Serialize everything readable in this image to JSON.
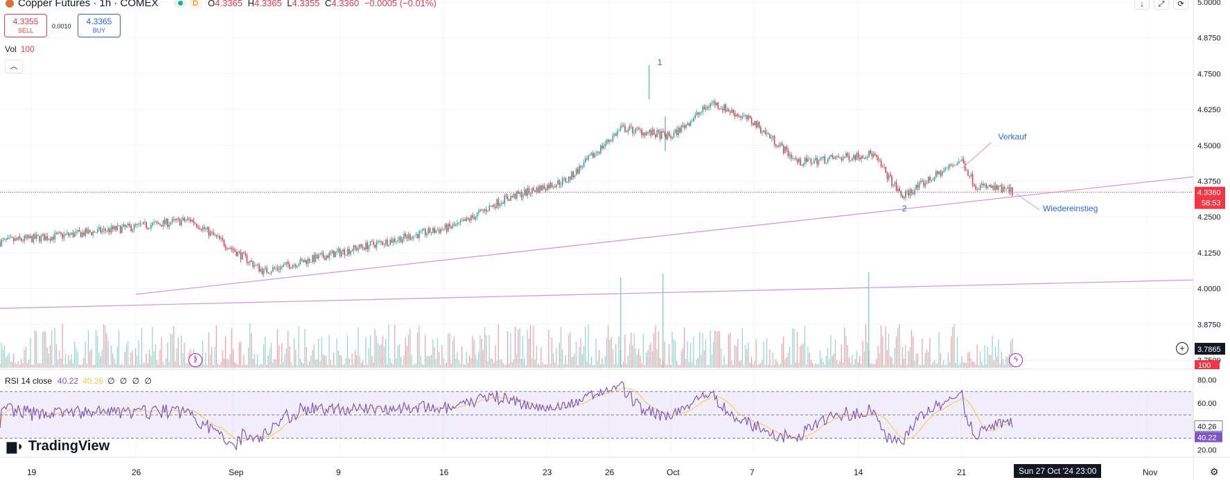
{
  "header": {
    "title": "Copper Futures · 1h · COMEX",
    "status_letter": "D",
    "ohlc": [
      {
        "k": "O",
        "v": "4.3365"
      },
      {
        "k": "H",
        "v": "4.3365"
      },
      {
        "k": "L",
        "v": "4.3355"
      },
      {
        "k": "C",
        "v": "4.3360"
      }
    ],
    "change": "−0.0005 (−0.01%)"
  },
  "trade": {
    "sell_price": "4.3355",
    "sell_label": "SELL",
    "spread": "0.0010",
    "buy_price": "4.3365",
    "buy_label": "BUY"
  },
  "volume_legend": {
    "label": "Vol",
    "value": "100"
  },
  "rsi_legend": {
    "label": "RSI 14 close",
    "rsi": "40.22",
    "ma": "40.26",
    "nulls": "∅ ∅ ∅ ∅"
  },
  "brand": "TradingView",
  "cursor_time": "Sun 27 Oct '24   23:00",
  "colors": {
    "up": "#22ab94",
    "down": "#f23645",
    "rsi": "#7e57c2",
    "rsi_ma": "#f7c948",
    "trendline": "#ce93d8",
    "annotation": "#2962ff",
    "price_line": "#f23645"
  },
  "icons": [
    "arrow-down-icon",
    "expand-icon",
    "refresh-icon",
    "replay-icon",
    "lightning-icon",
    "plus-icon",
    "settings-icon"
  ],
  "chart_data": [
    {
      "type": "candlestick",
      "title": "Copper Futures · 1h · COMEX",
      "x_labels": [
        "19",
        "26",
        "Sep",
        "9",
        "16",
        "23",
        "26",
        "Oct",
        "7",
        "14",
        "21",
        "Nov"
      ],
      "y_ticks": [
        "5.0000",
        "4.8750",
        "4.7500",
        "4.6250",
        "4.5000",
        "4.3750",
        "4.2500",
        "4.1250",
        "4.0000",
        "3.8750",
        "3.7500"
      ],
      "y_range": [
        3.75,
        5.0
      ],
      "current_price": "4.3360",
      "countdown": "58:53",
      "crosshair_price": "3.7865",
      "last_volume_tag": "100",
      "trend_path": {
        "x": [
          "Aug 14",
          "Aug 22",
          "Aug 30",
          "Sep 4",
          "Sep 10",
          "Sep 17",
          "Sep 20",
          "Sep 24",
          "Sep 27",
          "Oct 1",
          "Oct 4",
          "Oct 7",
          "Oct 10",
          "Oct 15",
          "Oct 17",
          "Oct 21",
          "Oct 22",
          "Oct 25"
        ],
        "close": [
          4.16,
          4.19,
          4.24,
          4.06,
          4.14,
          4.22,
          4.31,
          4.38,
          4.56,
          4.53,
          4.65,
          4.58,
          4.44,
          4.47,
          4.32,
          4.45,
          4.36,
          4.336
        ]
      },
      "annotations": [
        {
          "text": "1",
          "at": [
            "Sep 27",
            4.78
          ]
        },
        {
          "text": "2",
          "at": [
            "Oct 17",
            4.27
          ]
        },
        {
          "text": "Verkauf",
          "at": [
            "Oct 23",
            4.52
          ]
        },
        {
          "text": "Wiedereinstieg",
          "at": [
            "Oct 25",
            4.27
          ]
        }
      ],
      "trendlines": [
        {
          "from": [
            "Aug 26",
            3.98
          ],
          "to": [
            "Oct 31",
            4.39
          ]
        },
        {
          "from": [
            "Aug 14",
            3.93
          ],
          "to": [
            "Oct 31",
            4.03
          ]
        }
      ]
    },
    {
      "type": "bar",
      "title": "Vol",
      "note": "hourly volume histogram, colored by candle direction"
    },
    {
      "type": "line",
      "title": "RSI 14 close",
      "y_ticks": [
        "80.00",
        "60.00",
        "20.00"
      ],
      "y_range": [
        15,
        85
      ],
      "bands": [
        70,
        50,
        30
      ],
      "last_rsi": "40.22",
      "last_ma": "40.26"
    }
  ]
}
